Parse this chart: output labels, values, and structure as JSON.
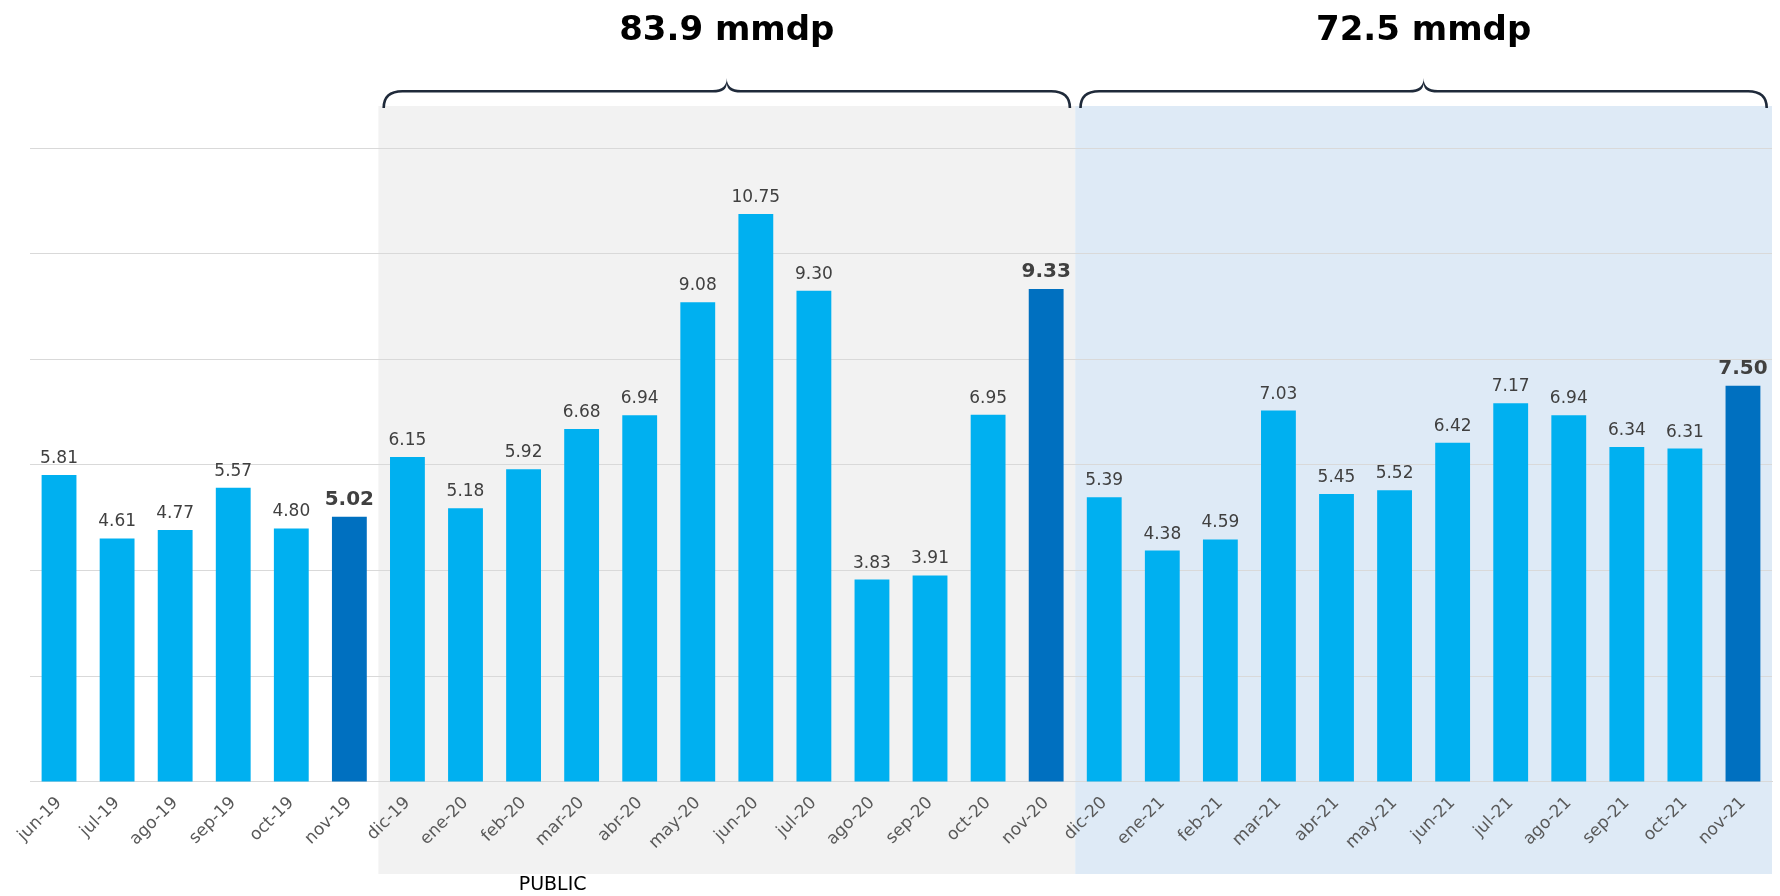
{
  "chart_data": {
    "type": "bar",
    "categories": [
      "jun-19",
      "jul-19",
      "ago-19",
      "sep-19",
      "oct-19",
      "nov-19",
      "dic-19",
      "ene-20",
      "feb-20",
      "mar-20",
      "abr-20",
      "may-20",
      "jun-20",
      "jul-20",
      "ago-20",
      "sep-20",
      "oct-20",
      "nov-20",
      "dic-20",
      "ene-21",
      "feb-21",
      "mar-21",
      "abr-21",
      "may-21",
      "jun-21",
      "jul-21",
      "ago-21",
      "sep-21",
      "oct-21",
      "nov-21"
    ],
    "values": [
      5.81,
      4.61,
      4.77,
      5.57,
      4.8,
      5.02,
      6.15,
      5.18,
      5.92,
      6.68,
      6.94,
      9.08,
      10.75,
      9.3,
      3.83,
      3.91,
      6.95,
      9.33,
      5.39,
      4.38,
      4.59,
      7.03,
      5.45,
      5.52,
      6.42,
      7.17,
      6.94,
      6.34,
      6.31,
      7.5
    ],
    "value_labels": [
      "5.81",
      "4.61",
      "4.77",
      "5.57",
      "4.80",
      "5.02",
      "6.15",
      "5.18",
      "5.92",
      "6.68",
      "6.94",
      "9.08",
      "10.75",
      "9.30",
      "3.83",
      "3.91",
      "6.95",
      "9.33",
      "5.39",
      "4.38",
      "4.59",
      "7.03",
      "5.45",
      "5.52",
      "6.42",
      "7.17",
      "6.94",
      "6.34",
      "6.31",
      "7.50"
    ],
    "colors": [
      "#00b0f0",
      "#00b0f0",
      "#00b0f0",
      "#00b0f0",
      "#00b0f0",
      "#0070c0",
      "#00b0f0",
      "#00b0f0",
      "#00b0f0",
      "#00b0f0",
      "#00b0f0",
      "#00b0f0",
      "#00b0f0",
      "#00b0f0",
      "#00b0f0",
      "#00b0f0",
      "#00b0f0",
      "#0070c0",
      "#00b0f0",
      "#00b0f0",
      "#00b0f0",
      "#00b0f0",
      "#00b0f0",
      "#00b0f0",
      "#00b0f0",
      "#00b0f0",
      "#00b0f0",
      "#00b0f0",
      "#00b0f0",
      "#0070c0"
    ],
    "ylim": [
      0,
      12
    ],
    "yticks": [
      {
        "value": 0,
        "label": null
      },
      {
        "value": 2,
        "label": null
      },
      {
        "value": 4,
        "label": null
      },
      {
        "value": 6,
        "label": null
      },
      {
        "value": 8,
        "label": null
      },
      {
        "value": 10,
        "label": null
      },
      {
        "value": 12,
        "label": null
      }
    ],
    "grid": "y",
    "tick_labels": "x",
    "legend": false,
    "bands": [
      {
        "axis": "x",
        "from": "dic-19",
        "to": "nov-20",
        "label": "83.9 mmdp",
        "color": "#f2f2f2"
      },
      {
        "axis": "x",
        "from": "dic-20",
        "to": "nov-21",
        "label": "72.5 mmdp",
        "color": "#deeaf6"
      }
    ],
    "annotations": [
      "PUBLIC"
    ]
  }
}
